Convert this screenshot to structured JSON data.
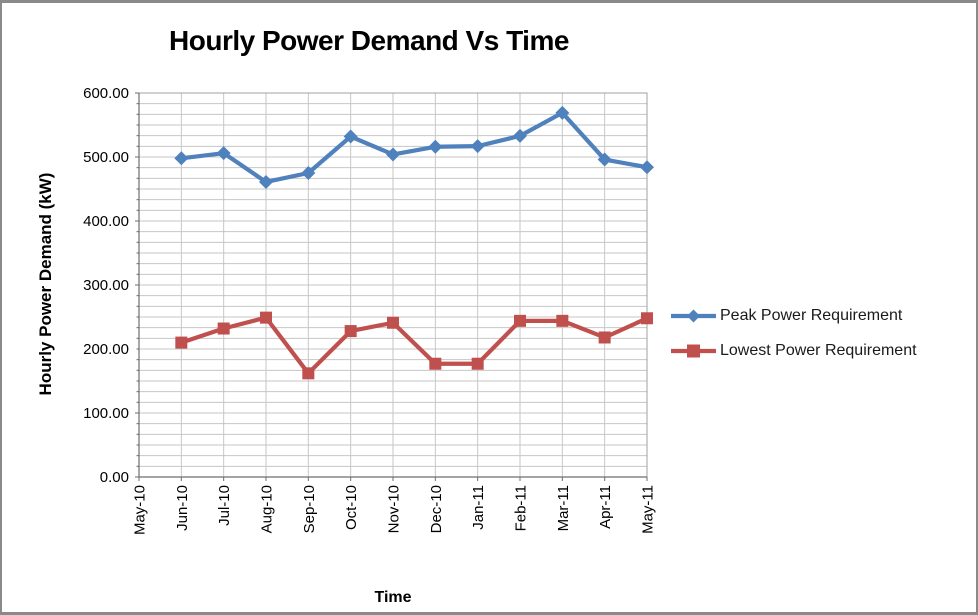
{
  "window": {
    "background": "#ffffff",
    "border_color": "#8a8a8a"
  },
  "chart_data": {
    "type": "line",
    "title": "Hourly Power Demand Vs Time",
    "xlabel": "Time",
    "ylabel": "Hourly Power Demand (kW)",
    "categories": [
      "May-10",
      "Jun-10",
      "Jul-10",
      "Aug-10",
      "Sep-10",
      "Oct-10",
      "Nov-10",
      "Dec-10",
      "Jan-11",
      "Feb-11",
      "Mar-11",
      "Apr-11",
      "May-11"
    ],
    "series": [
      {
        "name": "Peak Power Requirement",
        "color": "#4F81BD",
        "marker": "diamond",
        "values": [
          null,
          498,
          506,
          461,
          475,
          532,
          504,
          516,
          517,
          533,
          569,
          496,
          484
        ]
      },
      {
        "name": "Lowest Power Requirement",
        "color": "#C0504D",
        "marker": "square",
        "values": [
          null,
          210,
          232,
          249,
          162,
          228,
          241,
          177,
          177,
          244,
          244,
          218,
          248
        ]
      }
    ],
    "ylim": [
      0,
      600
    ],
    "y_major_interval": 100,
    "y_minor_divisions_per_major": 6,
    "y_tick_labels": [
      "0.00",
      "100.00",
      "200.00",
      "300.00",
      "400.00",
      "500.00",
      "600.00"
    ],
    "grid": true,
    "x_labels_rotated": true,
    "categories_on_tick_marks": true,
    "legend_position": "right"
  },
  "style": {
    "gridline_color": "#c6c6c6",
    "plot_border_color": "#a0a0a0",
    "axis_color": "#6e6e6e",
    "tick_label_color": "#000000",
    "line_width": 4.2
  }
}
